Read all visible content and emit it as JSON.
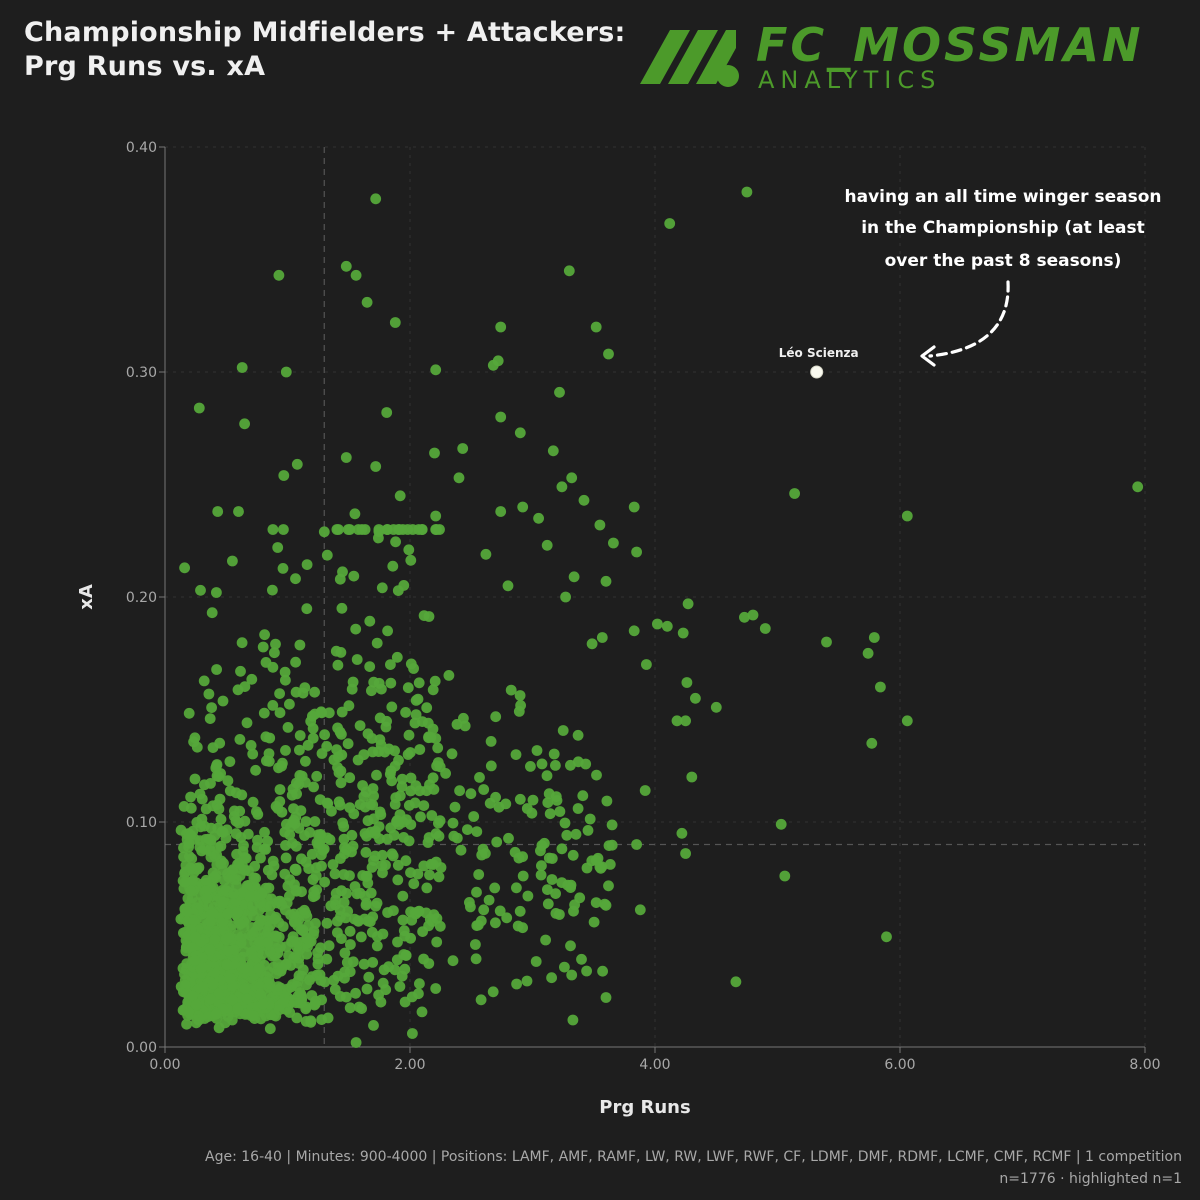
{
  "title": {
    "line1": "Championship Midfielders + Attackers:",
    "line2": "Prg Runs vs. xA"
  },
  "logo": {
    "name": "FC_MOSSMAN",
    "sub": "ANALYTICS",
    "color": "#4c9a2a"
  },
  "footer": {
    "filters": "Age: 16-40 | Minutes: 900-4000 | Positions: LAMF, AMF, RAMF, LW, RW, LWF, RWF, CF, LDMF, DMF, RDMF, LCMF, CMF, RCMF | 1 competition",
    "counts": "n=1776 · highlighted n=1"
  },
  "colors": {
    "background": "#1e1e1e",
    "point": "#55a83a",
    "highlight": "#fafaf0",
    "reference_line": "#555555"
  },
  "chart_data": {
    "type": "scatter",
    "xlabel": "Prg Runs",
    "ylabel": "xA",
    "xlim": [
      0,
      8
    ],
    "ylim": [
      0,
      0.4
    ],
    "x_ticks": [
      "0.00",
      "2.00",
      "4.00",
      "6.00",
      "8.00"
    ],
    "y_ticks": [
      "0.00",
      "0.10",
      "0.20",
      "0.30",
      "0.40"
    ],
    "grid": true,
    "reference_lines": {
      "x": 1.3,
      "y": 0.09
    },
    "n_points": 1776,
    "highlighted": [
      {
        "name": "Léo Scienza",
        "x": 5.32,
        "y": 0.3
      }
    ],
    "annotation": {
      "lines": [
        "having an all time winger season",
        "in the Championship (at least",
        "over the past 8 seasons)"
      ]
    },
    "outliers": [
      [
        4.75,
        0.38
      ],
      [
        1.72,
        0.377
      ],
      [
        4.12,
        0.366
      ],
      [
        0.93,
        0.343
      ],
      [
        1.48,
        0.347
      ],
      [
        1.56,
        0.343
      ],
      [
        3.3,
        0.345
      ],
      [
        1.65,
        0.331
      ],
      [
        1.88,
        0.322
      ],
      [
        2.74,
        0.32
      ],
      [
        3.52,
        0.32
      ],
      [
        3.62,
        0.308
      ],
      [
        0.63,
        0.302
      ],
      [
        0.99,
        0.3
      ],
      [
        2.21,
        0.301
      ],
      [
        2.72,
        0.305
      ],
      [
        2.68,
        0.303
      ],
      [
        3.22,
        0.291
      ],
      [
        0.28,
        0.284
      ],
      [
        0.65,
        0.277
      ],
      [
        1.81,
        0.282
      ],
      [
        2.74,
        0.28
      ],
      [
        2.9,
        0.273
      ],
      [
        1.08,
        0.259
      ],
      [
        1.48,
        0.262
      ],
      [
        2.43,
        0.266
      ],
      [
        2.2,
        0.264
      ],
      [
        3.17,
        0.265
      ],
      [
        3.32,
        0.253
      ],
      [
        1.72,
        0.258
      ],
      [
        2.4,
        0.253
      ],
      [
        0.97,
        0.254
      ],
      [
        3.24,
        0.249
      ],
      [
        1.92,
        0.245
      ],
      [
        2.92,
        0.24
      ],
      [
        3.42,
        0.243
      ],
      [
        3.83,
        0.24
      ],
      [
        0.43,
        0.238
      ],
      [
        0.6,
        0.238
      ],
      [
        1.55,
        0.237
      ],
      [
        2.21,
        0.236
      ],
      [
        2.74,
        0.238
      ],
      [
        3.05,
        0.235
      ],
      [
        3.55,
        0.232
      ],
      [
        3.66,
        0.224
      ],
      [
        3.85,
        0.22
      ],
      [
        1.3,
        0.229
      ],
      [
        0.92,
        0.222
      ],
      [
        1.99,
        0.221
      ],
      [
        3.12,
        0.223
      ],
      [
        0.16,
        0.213
      ],
      [
        0.55,
        0.216
      ],
      [
        2.62,
        0.219
      ],
      [
        3.34,
        0.209
      ],
      [
        3.6,
        0.207
      ],
      [
        0.29,
        0.203
      ],
      [
        0.42,
        0.202
      ],
      [
        2.8,
        0.205
      ],
      [
        3.27,
        0.2
      ],
      [
        4.27,
        0.197
      ],
      [
        4.02,
        0.188
      ],
      [
        4.1,
        0.187
      ],
      [
        4.23,
        0.184
      ],
      [
        3.83,
        0.185
      ],
      [
        3.57,
        0.182
      ],
      [
        4.8,
        0.192
      ],
      [
        4.73,
        0.191
      ],
      [
        4.9,
        0.186
      ],
      [
        5.4,
        0.18
      ],
      [
        5.79,
        0.182
      ],
      [
        5.74,
        0.175
      ],
      [
        5.84,
        0.16
      ],
      [
        3.93,
        0.17
      ],
      [
        4.26,
        0.162
      ],
      [
        4.33,
        0.155
      ],
      [
        4.5,
        0.151
      ],
      [
        4.18,
        0.145
      ],
      [
        4.25,
        0.145
      ],
      [
        5.77,
        0.135
      ],
      [
        6.06,
        0.236
      ],
      [
        6.06,
        0.145
      ],
      [
        5.14,
        0.246
      ],
      [
        7.94,
        0.249
      ],
      [
        4.3,
        0.12
      ],
      [
        4.22,
        0.095
      ],
      [
        4.25,
        0.086
      ],
      [
        3.92,
        0.114
      ],
      [
        3.85,
        0.09
      ],
      [
        5.03,
        0.099
      ],
      [
        5.06,
        0.076
      ],
      [
        5.89,
        0.049
      ],
      [
        3.88,
        0.061
      ],
      [
        3.6,
        0.063
      ],
      [
        4.66,
        0.029
      ],
      [
        2.87,
        0.028
      ],
      [
        3.31,
        0.045
      ],
      [
        3.32,
        0.032
      ],
      [
        3.6,
        0.022
      ],
      [
        3.33,
        0.012
      ],
      [
        2.58,
        0.021
      ],
      [
        2.21,
        0.026
      ],
      [
        2.02,
        0.006
      ],
      [
        1.96,
        0.02
      ],
      [
        1.56,
        0.002
      ],
      [
        3.03,
        0.038
      ],
      [
        3.4,
        0.039
      ],
      [
        3.55,
        0.08
      ],
      [
        3.52,
        0.083
      ]
    ]
  }
}
